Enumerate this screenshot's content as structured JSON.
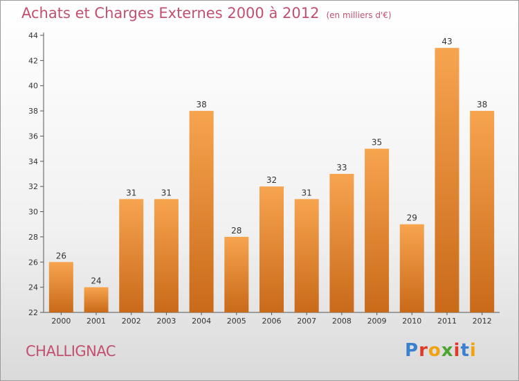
{
  "header": {
    "title": "Achats et Charges Externes 2000 à 2012",
    "unit": "(en milliers d'€)"
  },
  "footer": {
    "commune": "CHALLIGNAC",
    "logo_text": "Proxiti"
  },
  "colors": {
    "title": "#c0506e",
    "bar_top": "#f7a44f",
    "bar_bottom": "#c96a19",
    "logo_letters": [
      "#3a7fd0",
      "#e03a2a",
      "#f2a20f",
      "#4aa52f",
      "#e03a2a",
      "#3a7fd0",
      "#f2a20f"
    ]
  },
  "chart_data": {
    "type": "bar",
    "title": "Achats et Charges Externes 2000 à 2012",
    "subtitle": "(en milliers d'€)",
    "xlabel": "",
    "ylabel": "",
    "categories": [
      "2000",
      "2001",
      "2002",
      "2003",
      "2004",
      "2005",
      "2006",
      "2007",
      "2008",
      "2009",
      "2010",
      "2011",
      "2012"
    ],
    "values": [
      26,
      24,
      31,
      31,
      38,
      28,
      32,
      31,
      33,
      35,
      29,
      43,
      38
    ],
    "ylim": [
      22,
      44
    ],
    "yticks": [
      22,
      24,
      26,
      28,
      30,
      32,
      34,
      36,
      38,
      40,
      42,
      44
    ],
    "grid": false,
    "data_labels": true
  }
}
